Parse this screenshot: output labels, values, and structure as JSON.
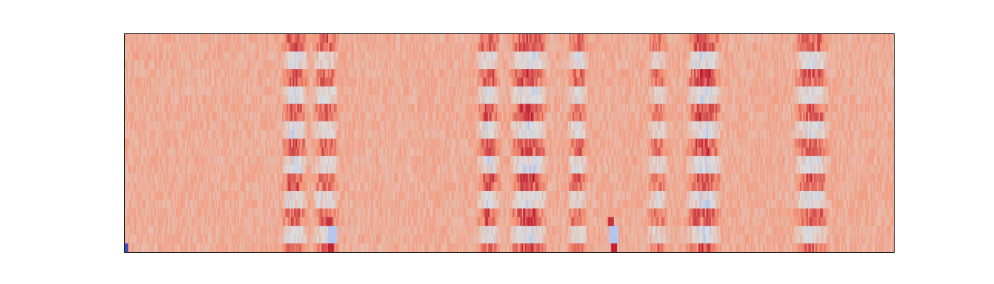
{
  "chart_data": {
    "type": "heatmap",
    "title": "",
    "xlabel": "",
    "ylabel": "",
    "ticks_visible": false,
    "colorbar": false,
    "colormap": "coolwarm",
    "colors": {
      "low": "#3b4cc0",
      "mid": "#dddddd",
      "high": "#b40426",
      "background": "#f4b89c"
    },
    "grid": {
      "columns": 500,
      "rows": 25,
      "value_range": [
        -1,
        1
      ],
      "baseline_value": 0.35,
      "noise_amplitude": 0.12
    },
    "features": [
      {
        "kind": "vertical_band",
        "center_col": 110,
        "width_cols": 18,
        "pattern": "alternating",
        "strength": 0.35
      },
      {
        "kind": "vertical_band",
        "center_col": 130,
        "width_cols": 18,
        "pattern": "alternating",
        "strength": 0.3
      },
      {
        "kind": "vertical_band",
        "center_col": 236,
        "width_cols": 16,
        "pattern": "alternating",
        "strength": 0.35
      },
      {
        "kind": "vertical_band",
        "center_col": 262,
        "width_cols": 26,
        "pattern": "alternating",
        "strength": 0.4
      },
      {
        "kind": "vertical_band",
        "center_col": 294,
        "width_cols": 14,
        "pattern": "alternating",
        "strength": 0.3
      },
      {
        "kind": "vertical_band",
        "center_col": 346,
        "width_cols": 14,
        "pattern": "alternating",
        "strength": 0.25
      },
      {
        "kind": "vertical_band",
        "center_col": 376,
        "width_cols": 24,
        "pattern": "alternating",
        "strength": 0.4
      },
      {
        "kind": "vertical_band",
        "center_col": 446,
        "width_cols": 24,
        "pattern": "alternating",
        "strength": 0.35
      },
      {
        "kind": "spot",
        "col": 132,
        "row_from_bottom": 1,
        "width_cols": 6,
        "height_rows": 2,
        "value": -0.25
      },
      {
        "kind": "spot",
        "col": 132,
        "row_from_bottom": 0,
        "width_cols": 4,
        "height_rows": 1,
        "value": 0.9
      },
      {
        "kind": "spot",
        "col": 131,
        "row_from_bottom": 3,
        "width_cols": 4,
        "height_rows": 1,
        "value": 0.85
      },
      {
        "kind": "spot",
        "col": 315,
        "row_from_bottom": 1,
        "width_cols": 6,
        "height_rows": 2,
        "value": -0.25
      },
      {
        "kind": "spot",
        "col": 316,
        "row_from_bottom": 0,
        "width_cols": 4,
        "height_rows": 1,
        "value": 0.9
      },
      {
        "kind": "spot",
        "col": 314,
        "row_from_bottom": 3,
        "width_cols": 4,
        "height_rows": 1,
        "value": 0.85
      },
      {
        "kind": "spot",
        "col": 0,
        "row_from_bottom": 0,
        "width_cols": 2,
        "height_rows": 1,
        "value": -1.0
      }
    ]
  }
}
